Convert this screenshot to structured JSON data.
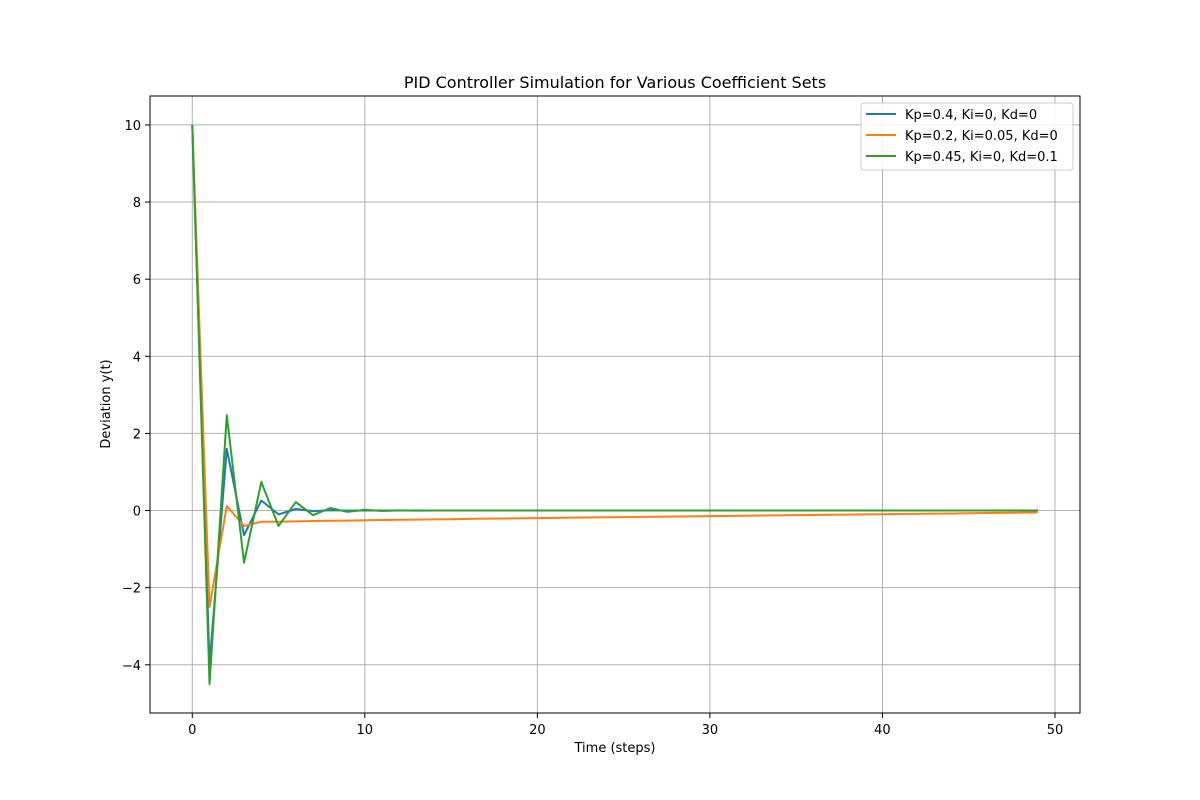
{
  "chart_data": {
    "type": "line",
    "title": "PID Controller Simulation for Various Coefficient Sets",
    "xlabel": "Time (steps)",
    "ylabel": "Deviation y(t)",
    "xlim": [
      -2.45,
      51.45
    ],
    "ylim": [
      -5.25,
      10.75
    ],
    "xticks": [
      0,
      10,
      20,
      30,
      40,
      50
    ],
    "yticks": [
      -4,
      -2,
      0,
      2,
      4,
      6,
      8,
      10
    ],
    "xtick_labels": [
      "0",
      "10",
      "20",
      "30",
      "40",
      "50"
    ],
    "ytick_labels": [
      "−4",
      "−2",
      "0",
      "2",
      "4",
      "6",
      "8",
      "10"
    ],
    "grid": true,
    "legend_position": "upper right",
    "series": [
      {
        "name": "Kp=0.4, Ki=0, Kd=0",
        "color": "#1f77b4",
        "x": [
          0,
          1,
          2,
          3,
          4,
          5,
          6,
          7,
          8,
          9,
          10,
          11,
          12,
          13,
          14,
          15,
          16,
          17,
          18,
          19,
          20,
          21,
          22,
          23,
          24,
          25,
          26,
          27,
          28,
          29,
          30,
          31,
          32,
          33,
          34,
          35,
          36,
          37,
          38,
          39,
          40,
          41,
          42,
          43,
          44,
          45,
          46,
          47,
          48,
          49
        ],
        "values": [
          10,
          -4,
          1.6,
          -0.64,
          0.26,
          -0.1,
          0.04,
          -0.016,
          0.0066,
          -0.0026,
          0.001,
          -0.0004,
          0.0002,
          0,
          0,
          0,
          0,
          0,
          0,
          0,
          0,
          0,
          0,
          0,
          0,
          0,
          0,
          0,
          0,
          0,
          0,
          0,
          0,
          0,
          0,
          0,
          0,
          0,
          0,
          0,
          0,
          0,
          0,
          0,
          0,
          0,
          0,
          0,
          0,
          0
        ]
      },
      {
        "name": "Kp=0.2, Ki=0.05, Kd=0",
        "color": "#ff7f0e",
        "x": [
          0,
          1,
          2,
          3,
          4,
          5,
          6,
          7,
          8,
          9,
          10,
          11,
          12,
          13,
          14,
          15,
          16,
          17,
          18,
          19,
          20,
          21,
          22,
          23,
          24,
          25,
          26,
          27,
          28,
          29,
          30,
          31,
          32,
          33,
          34,
          35,
          36,
          37,
          38,
          39,
          40,
          41,
          42,
          43,
          44,
          45,
          46,
          47,
          48,
          49
        ],
        "values": [
          10,
          -2.5,
          0.12,
          -0.4,
          -0.29,
          -0.29,
          -0.28,
          -0.27,
          -0.265,
          -0.26,
          -0.25,
          -0.245,
          -0.24,
          -0.235,
          -0.23,
          -0.225,
          -0.215,
          -0.21,
          -0.205,
          -0.2,
          -0.195,
          -0.19,
          -0.185,
          -0.18,
          -0.175,
          -0.17,
          -0.165,
          -0.16,
          -0.155,
          -0.15,
          -0.145,
          -0.14,
          -0.135,
          -0.13,
          -0.125,
          -0.12,
          -0.115,
          -0.11,
          -0.105,
          -0.1,
          -0.095,
          -0.09,
          -0.085,
          -0.08,
          -0.075,
          -0.07,
          -0.065,
          -0.06,
          -0.055,
          -0.05
        ]
      },
      {
        "name": "Kp=0.45, Ki=0, Kd=0.1",
        "color": "#2ca02c",
        "x": [
          0,
          1,
          2,
          3,
          4,
          5,
          6,
          7,
          8,
          9,
          10,
          11,
          12,
          13,
          14,
          15,
          16,
          17,
          18,
          19,
          20,
          21,
          22,
          23,
          24,
          25,
          26,
          27,
          28,
          29,
          30,
          31,
          32,
          33,
          34,
          35,
          36,
          37,
          38,
          39,
          40,
          41,
          42,
          43,
          44,
          45,
          46,
          47,
          48,
          49
        ],
        "values": [
          10,
          -4.5,
          2.47,
          -1.35,
          0.74,
          -0.4,
          0.22,
          -0.12,
          0.066,
          -0.036,
          0.02,
          -0.011,
          0.006,
          -0.003,
          0.0017,
          0,
          0,
          0,
          0,
          0,
          0,
          0,
          0,
          0,
          0,
          0,
          0,
          0,
          0,
          0,
          0,
          0,
          0,
          0,
          0,
          0,
          0,
          0,
          0,
          0,
          0,
          0,
          0,
          0,
          0,
          0,
          0,
          0,
          0,
          0
        ]
      }
    ]
  }
}
